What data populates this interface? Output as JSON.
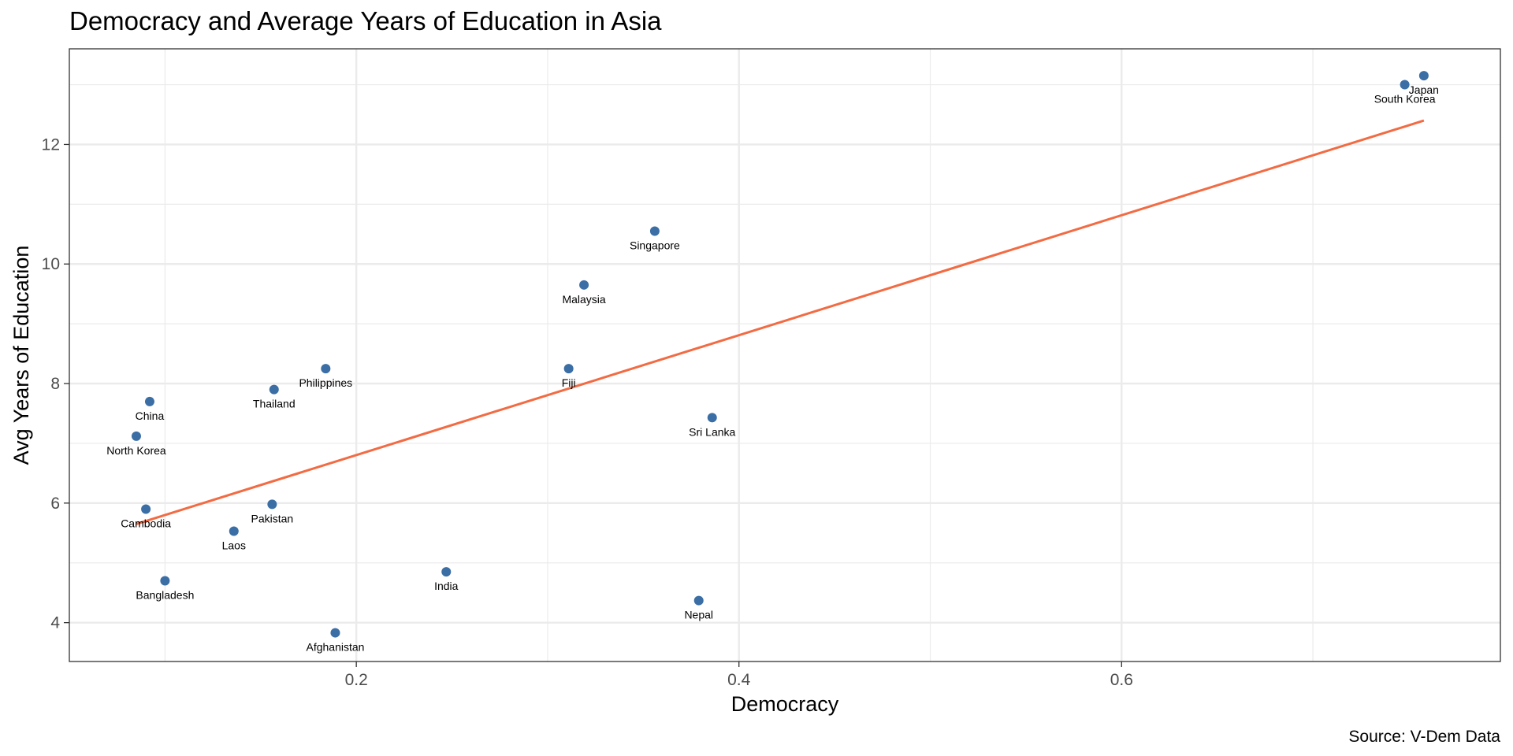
{
  "chart_data": {
    "type": "scatter",
    "title": "Democracy and Average Years of Education in Asia",
    "xlabel": "Democracy",
    "ylabel": "Avg Years of Education",
    "caption": "Source: V-Dem Data",
    "xlim": [
      0.05,
      0.798
    ],
    "ylim": [
      3.35,
      13.6
    ],
    "x_ticks": [
      0.2,
      0.4,
      0.6
    ],
    "x_tick_labels": [
      "0.2",
      "0.4",
      "0.6"
    ],
    "y_ticks": [
      4,
      6,
      8,
      10,
      12
    ],
    "y_tick_labels": [
      "4",
      "6",
      "8",
      "10",
      "12"
    ],
    "x_minor_ticks": [
      0.1,
      0.3,
      0.5,
      0.7
    ],
    "y_minor_ticks": [
      5,
      7,
      9,
      11,
      13
    ],
    "grid": true,
    "points": [
      {
        "label": "Japan",
        "x": 0.758,
        "y": 13.15
      },
      {
        "label": "South Korea",
        "x": 0.748,
        "y": 13.0
      },
      {
        "label": "Singapore",
        "x": 0.356,
        "y": 10.55
      },
      {
        "label": "Malaysia",
        "x": 0.319,
        "y": 9.65
      },
      {
        "label": "Fiji",
        "x": 0.311,
        "y": 8.25
      },
      {
        "label": "Philippines",
        "x": 0.184,
        "y": 8.25
      },
      {
        "label": "Thailand",
        "x": 0.157,
        "y": 7.9
      },
      {
        "label": "China",
        "x": 0.092,
        "y": 7.7
      },
      {
        "label": "Sri Lanka",
        "x": 0.386,
        "y": 7.43
      },
      {
        "label": "North Korea",
        "x": 0.085,
        "y": 7.12
      },
      {
        "label": "Pakistan",
        "x": 0.156,
        "y": 5.98
      },
      {
        "label": "Cambodia",
        "x": 0.09,
        "y": 5.9
      },
      {
        "label": "Laos",
        "x": 0.136,
        "y": 5.53
      },
      {
        "label": "India",
        "x": 0.247,
        "y": 4.85
      },
      {
        "label": "Bangladesh",
        "x": 0.1,
        "y": 4.7
      },
      {
        "label": "Nepal",
        "x": 0.379,
        "y": 4.37
      },
      {
        "label": "Afghanistan",
        "x": 0.189,
        "y": 3.83
      }
    ],
    "trend_line": {
      "x": [
        0.085,
        0.758
      ],
      "y": [
        5.65,
        12.4
      ]
    },
    "colors": {
      "point": "#3a6ea5",
      "trend": "#f26b43",
      "grid": "#ebebeb",
      "panel_border": "#333333",
      "tick_label": "#4d4d4d"
    }
  }
}
